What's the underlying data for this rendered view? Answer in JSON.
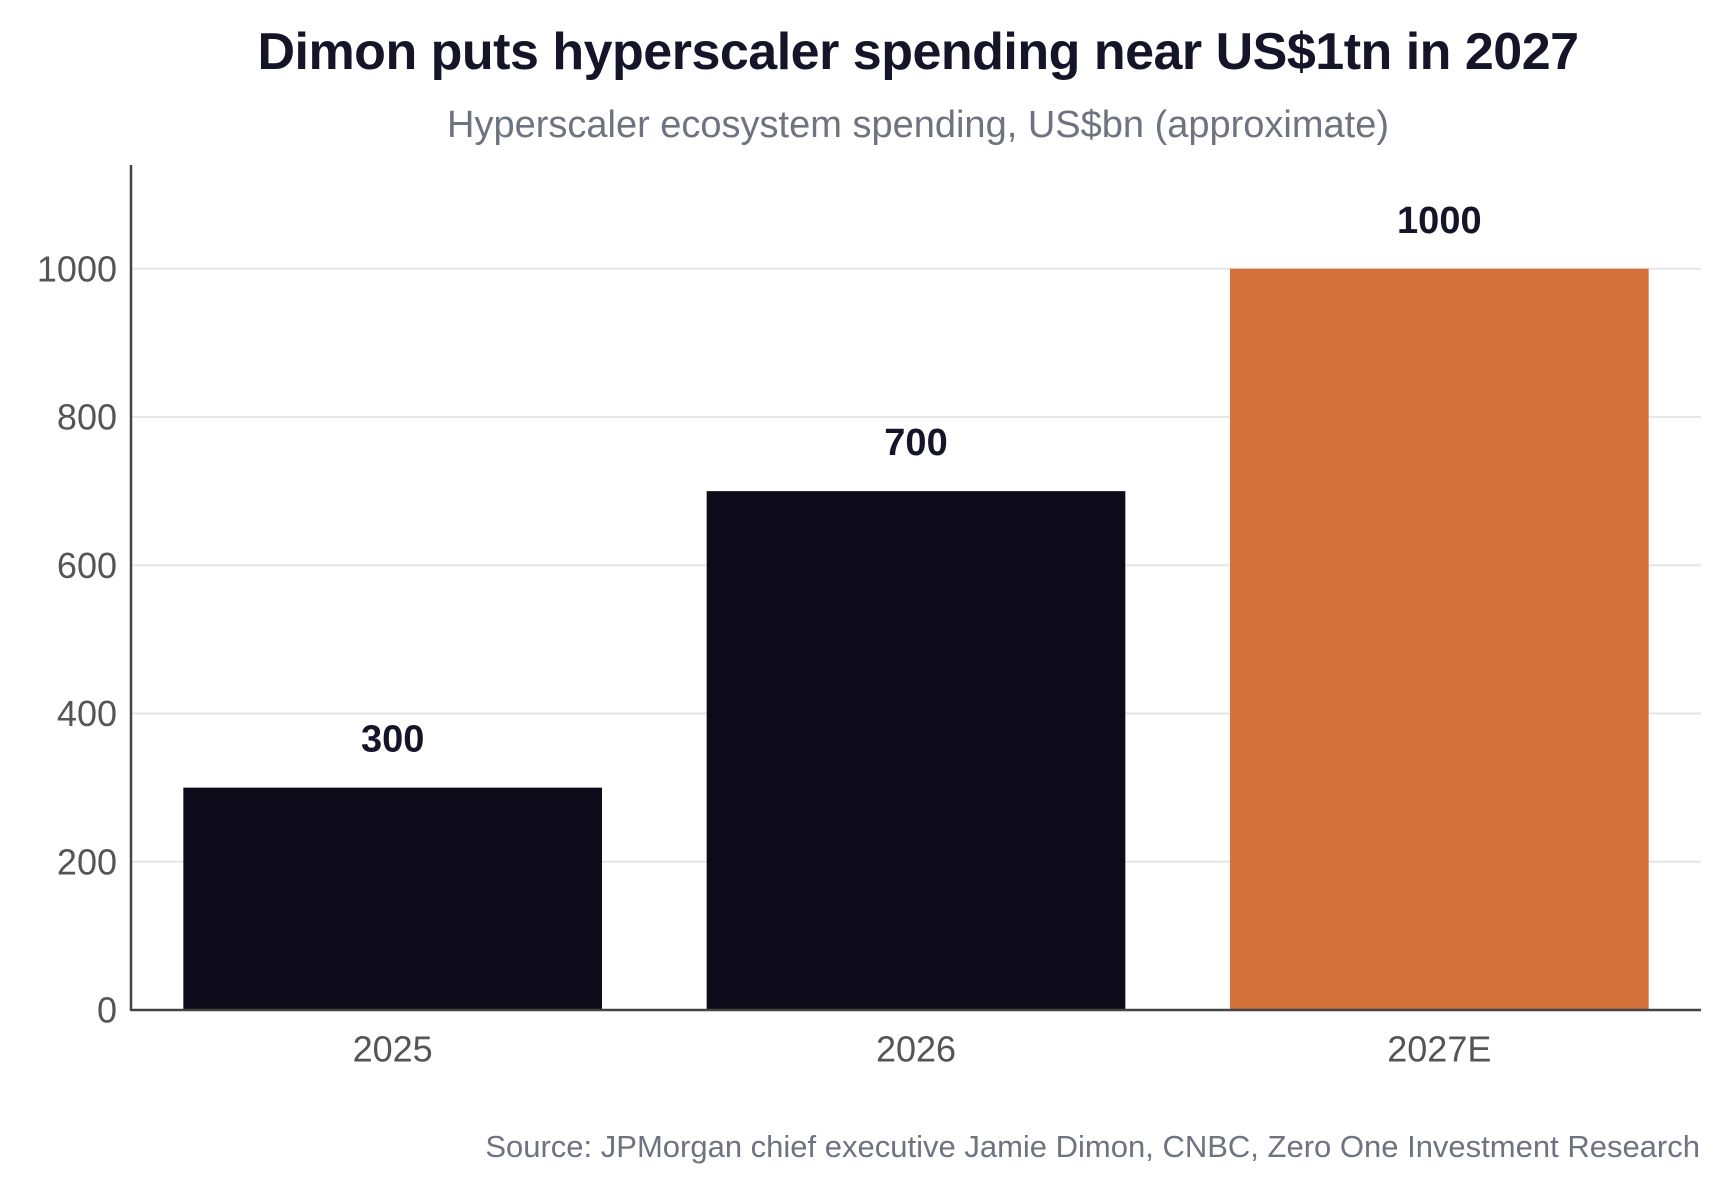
{
  "chart_data": {
    "type": "bar",
    "title": "Dimon puts hyperscaler spending near US$1tn in 2027",
    "subtitle": "Hyperscaler ecosystem spending, US$bn (approximate)",
    "categories": [
      "2025",
      "2026",
      "2027E"
    ],
    "values": [
      300,
      700,
      1000
    ],
    "value_labels": [
      "300",
      "700",
      "1000"
    ],
    "bar_colors": [
      "#0d0b19",
      "#0d0b19",
      "#d4713a"
    ],
    "ylim": [
      0,
      1140
    ],
    "yticks": [
      0,
      200,
      400,
      600,
      800,
      1000
    ],
    "ytick_labels": [
      "0",
      "200",
      "400",
      "600",
      "800",
      "1000"
    ],
    "grid": true,
    "legend": "none",
    "source": "Source: JPMorgan chief executive Jamie Dimon, CNBC, Zero One Investment Research"
  },
  "colors": {
    "title": "#15152a",
    "subtitle": "#6e7380",
    "axis": "#444444",
    "grid": "#e6e6e6",
    "tick_label": "#555555",
    "value_label": "#15152a"
  }
}
